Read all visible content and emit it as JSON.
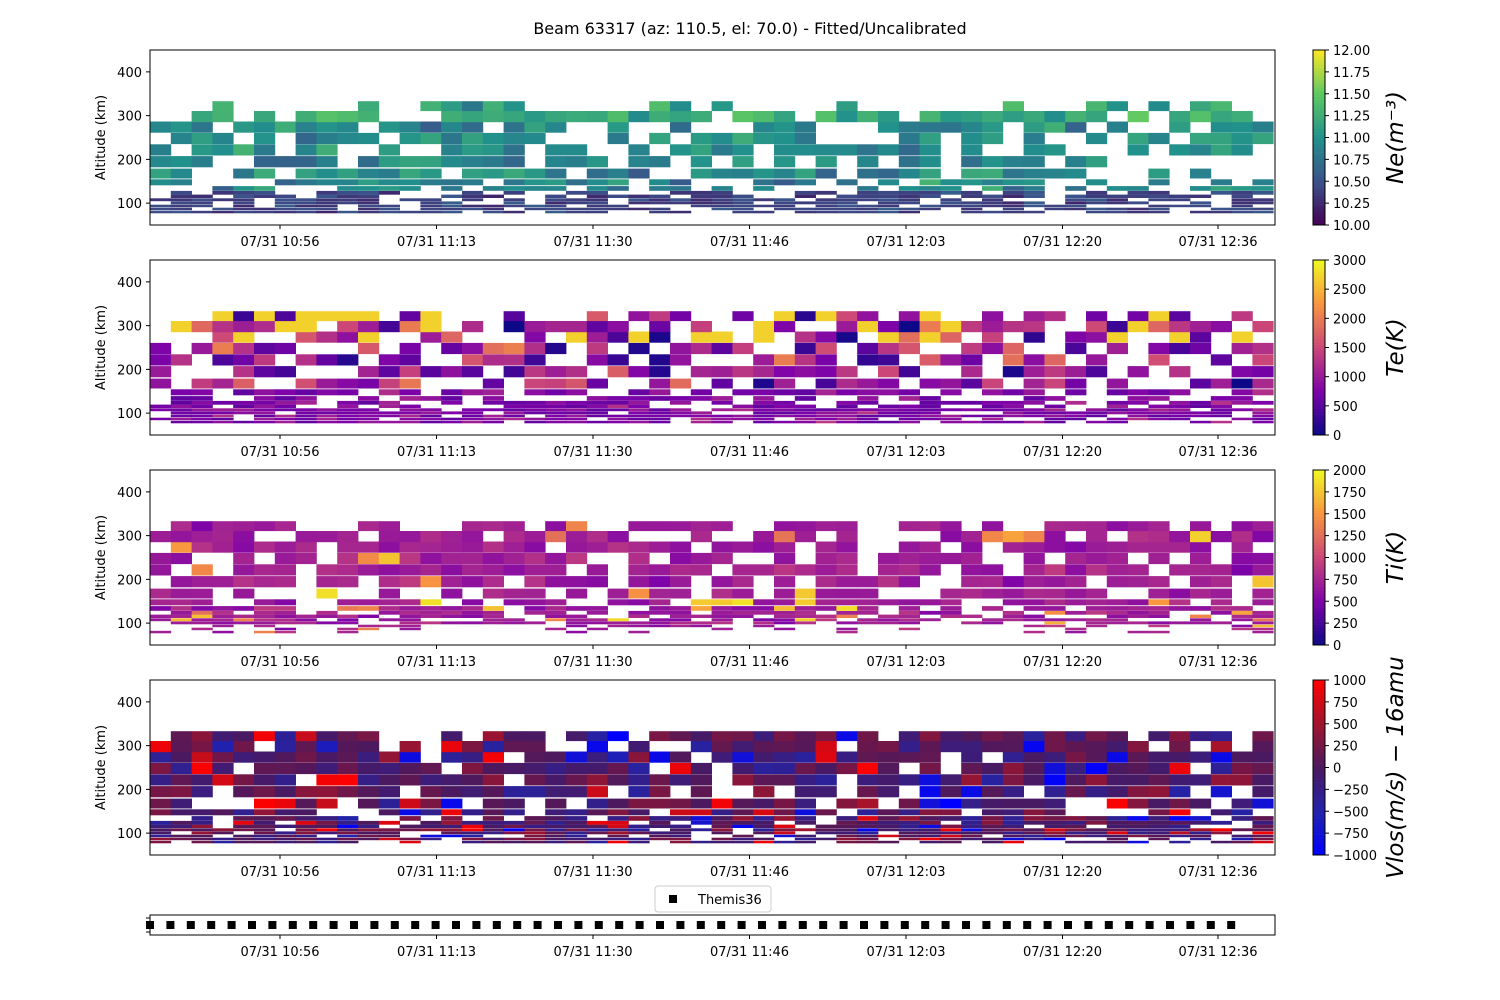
{
  "title": "Beam 63317 (az: 110.5, el: 70.0) - Fitted/Uncalibrated",
  "legend_label": "Themis36",
  "chart_data": [
    {
      "type": "heatmap",
      "ylabel": "Altitude (km)",
      "ylim": [
        50,
        450
      ],
      "yticks": [
        "100",
        "200",
        "300",
        "400"
      ],
      "xticks": [
        "07/31 10:56",
        "07/31 11:13",
        "07/31 11:30",
        "07/31 11:46",
        "07/31 12:03",
        "07/31 12:20",
        "07/31 12:36"
      ],
      "colorbar_label": "Ne(m⁻³)",
      "colormap": "viridis",
      "clim": [
        10.0,
        12.0
      ],
      "colorbar_ticks": [
        "10.00",
        "10.25",
        "10.50",
        "10.75",
        "11.00",
        "11.25",
        "11.50",
        "11.75",
        "12.00"
      ]
    },
    {
      "type": "heatmap",
      "ylabel": "Altitude (km)",
      "ylim": [
        50,
        450
      ],
      "yticks": [
        "100",
        "200",
        "300",
        "400"
      ],
      "xticks": [
        "07/31 10:56",
        "07/31 11:13",
        "07/31 11:30",
        "07/31 11:46",
        "07/31 12:03",
        "07/31 12:20",
        "07/31 12:36"
      ],
      "colorbar_label": "Te(K)",
      "colormap": "plasma",
      "clim": [
        0,
        3000
      ],
      "colorbar_ticks": [
        "0",
        "500",
        "1000",
        "1500",
        "2000",
        "2500",
        "3000"
      ]
    },
    {
      "type": "heatmap",
      "ylabel": "Altitude (km)",
      "ylim": [
        50,
        450
      ],
      "yticks": [
        "100",
        "200",
        "300",
        "400"
      ],
      "xticks": [
        "07/31 10:56",
        "07/31 11:13",
        "07/31 11:30",
        "07/31 11:46",
        "07/31 12:03",
        "07/31 12:20",
        "07/31 12:36"
      ],
      "colorbar_label": "Ti(K)",
      "colormap": "plasma",
      "clim": [
        0,
        2000
      ],
      "colorbar_ticks": [
        "0",
        "250",
        "500",
        "750",
        "1000",
        "1250",
        "1500",
        "1750",
        "2000"
      ]
    },
    {
      "type": "heatmap",
      "ylabel": "Altitude (km)",
      "ylim": [
        50,
        450
      ],
      "yticks": [
        "100",
        "200",
        "300",
        "400"
      ],
      "xticks": [
        "07/31 10:56",
        "07/31 11:13",
        "07/31 11:30",
        "07/31 11:46",
        "07/31 12:03",
        "07/31 12:20",
        "07/31 12:36"
      ],
      "colorbar_label": "Vlos(m/s) − 16amu",
      "colormap": "bwr-dark",
      "clim": [
        -1000,
        1000
      ],
      "colorbar_ticks": [
        "−1000",
        "−750",
        "−500",
        "−250",
        "0",
        "250",
        "500",
        "750",
        "1000"
      ]
    },
    {
      "type": "scatter",
      "series": [
        {
          "name": "Themis36",
          "marker": "square",
          "color": "#000000",
          "count": 54
        }
      ],
      "xticks": [
        "07/31 10:56",
        "07/31 11:13",
        "07/31 11:30",
        "07/31 11:46",
        "07/31 12:03",
        "07/31 12:20",
        "07/31 12:36"
      ]
    }
  ]
}
